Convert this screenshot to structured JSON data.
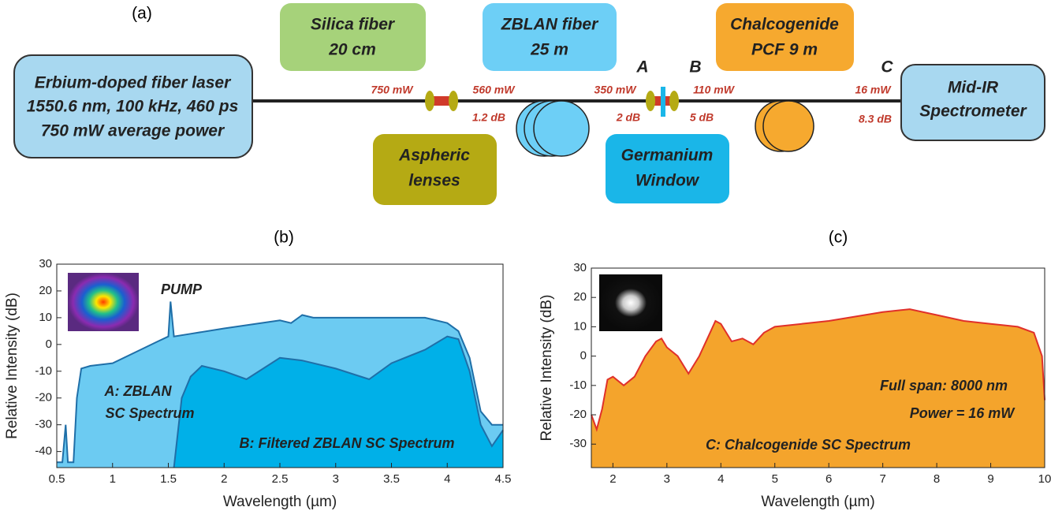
{
  "diagram": {
    "panel": "(a)",
    "boxes": [
      {
        "lines": [
          "Erbium-doped fiber laser",
          "1550.6 nm, 100 kHz, 460 ps",
          "750 mW average power"
        ]
      },
      {
        "lines": [
          "Silica fiber",
          "20 cm"
        ]
      },
      {
        "lines": [
          "ZBLAN fiber",
          "25 m"
        ]
      },
      {
        "lines": [
          "Chalcogenide",
          "PCF 9 m"
        ]
      },
      {
        "lines": [
          "Mid-IR",
          "Spectrometer"
        ]
      },
      {
        "lines": [
          "Aspheric",
          "lenses"
        ]
      },
      {
        "lines": [
          "Germanium",
          "Window"
        ]
      }
    ],
    "points": [
      "A",
      "B",
      "C"
    ],
    "measurements": [
      "750 mW",
      "560 mW",
      "1.2 dB",
      "350 mW",
      "2 dB",
      "110 mW",
      "5 dB",
      "16 mW",
      "8.3 dB"
    ]
  },
  "chart_data": [
    {
      "type": "area",
      "title": "(b)",
      "x_label": "Wavelength (µm)",
      "y_label": "Relative Intensity (dB)",
      "xlim": [
        0.5,
        4.5
      ],
      "xticks": [
        0.5,
        1,
        1.5,
        2,
        2.5,
        3,
        3.5,
        4,
        4.5
      ],
      "ylim": [
        -46,
        30
      ],
      "yticks": [
        -40,
        -30,
        -20,
        -10,
        0,
        10,
        20,
        30
      ],
      "annotations": [
        "PUMP",
        "A: ZBLAN",
        "SC Spectrum",
        "B: Filtered ZBLAN SC Spectrum"
      ],
      "series": [
        {
          "name": "A: ZBLAN SC Spectrum",
          "color": "#6ccbf2",
          "line_color": "#1f6fa8",
          "x": [
            0.5,
            0.55,
            0.58,
            0.6,
            0.65,
            0.68,
            0.72,
            0.8,
            1.0,
            1.2,
            1.4,
            1.5,
            1.52,
            1.55,
            1.7,
            2.0,
            2.5,
            2.6,
            2.7,
            2.8,
            3.0,
            3.5,
            3.8,
            4.0,
            4.1,
            4.2,
            4.3,
            4.4,
            4.5
          ],
          "values": [
            -44,
            -44,
            -30,
            -44,
            -44,
            -20,
            -9,
            -8,
            -7,
            -3,
            1,
            3,
            16,
            3,
            4,
            6,
            9,
            8,
            11,
            10,
            10,
            10,
            10,
            8,
            5,
            -5,
            -25,
            -30,
            -30
          ]
        },
        {
          "name": "B: Filtered ZBLAN SC Spectrum",
          "color": "#00b0e8",
          "line_color": "#1f6fa8",
          "x": [
            1.55,
            1.62,
            1.7,
            1.8,
            2.0,
            2.2,
            2.5,
            2.7,
            3.0,
            3.3,
            3.5,
            3.8,
            4.0,
            4.1,
            4.2,
            4.3,
            4.4,
            4.5
          ],
          "values": [
            -46,
            -20,
            -12,
            -8,
            -10,
            -13,
            -5,
            -6,
            -9,
            -13,
            -7,
            -2,
            3,
            2,
            -10,
            -30,
            -38,
            -32
          ]
        }
      ]
    },
    {
      "type": "area",
      "title": "(c)",
      "x_label": "Wavelength (µm)",
      "y_label": "Relative Intensity (dB)",
      "xlim": [
        1.6,
        10
      ],
      "xticks": [
        2,
        3,
        4,
        5,
        6,
        7,
        8,
        9,
        10
      ],
      "ylim": [
        -38,
        30
      ],
      "yticks": [
        -30,
        -20,
        -10,
        0,
        10,
        20,
        30
      ],
      "annotations": [
        "Full span: 8000 nm",
        "Power = 16 mW",
        "C: Chalcogenide SC Spectrum"
      ],
      "series": [
        {
          "name": "C: Chalcogenide SC Spectrum",
          "color": "#f4a42c",
          "line_color": "#e0302a",
          "x": [
            1.6,
            1.7,
            1.8,
            1.9,
            2.0,
            2.2,
            2.4,
            2.6,
            2.8,
            2.9,
            3.0,
            3.2,
            3.4,
            3.6,
            3.8,
            3.9,
            4.0,
            4.2,
            4.4,
            4.6,
            4.8,
            5.0,
            6.0,
            7.0,
            7.5,
            8.0,
            8.5,
            9.0,
            9.5,
            9.8,
            9.95,
            10
          ],
          "values": [
            -20,
            -25,
            -18,
            -8,
            -7,
            -10,
            -7,
            0,
            5,
            6,
            3,
            0,
            -6,
            0,
            8,
            12,
            11,
            5,
            6,
            4,
            8,
            10,
            12,
            15,
            16,
            14,
            12,
            11,
            10,
            8,
            0,
            -15
          ]
        }
      ]
    }
  ]
}
